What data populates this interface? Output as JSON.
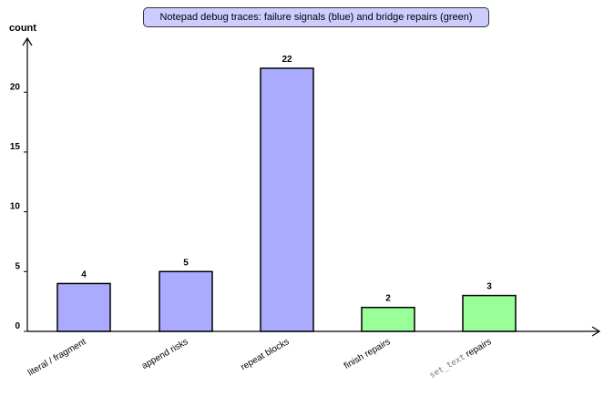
{
  "chart_data": {
    "type": "bar",
    "title": "Notepad debug traces: failure signals (blue) and bridge repairs (green)",
    "xlabel": "",
    "ylabel": "count",
    "ylim": [
      0,
      23
    ],
    "yticks": [
      0,
      5,
      10,
      15,
      20
    ],
    "grid": false,
    "categories": [
      {
        "text": "literal / fragment",
        "code": ""
      },
      {
        "text": "append risks",
        "code": ""
      },
      {
        "text": "repeat blocks",
        "code": ""
      },
      {
        "text": "finish repairs",
        "code": ""
      },
      {
        "text": " repairs",
        "code": "set_text"
      }
    ],
    "values": [
      4,
      5,
      22,
      2,
      3
    ],
    "bar_colors": [
      "#aaaaff",
      "#aaaaff",
      "#aaaaff",
      "#99ff99",
      "#99ff99"
    ],
    "title_box_color": "#ccccff"
  }
}
